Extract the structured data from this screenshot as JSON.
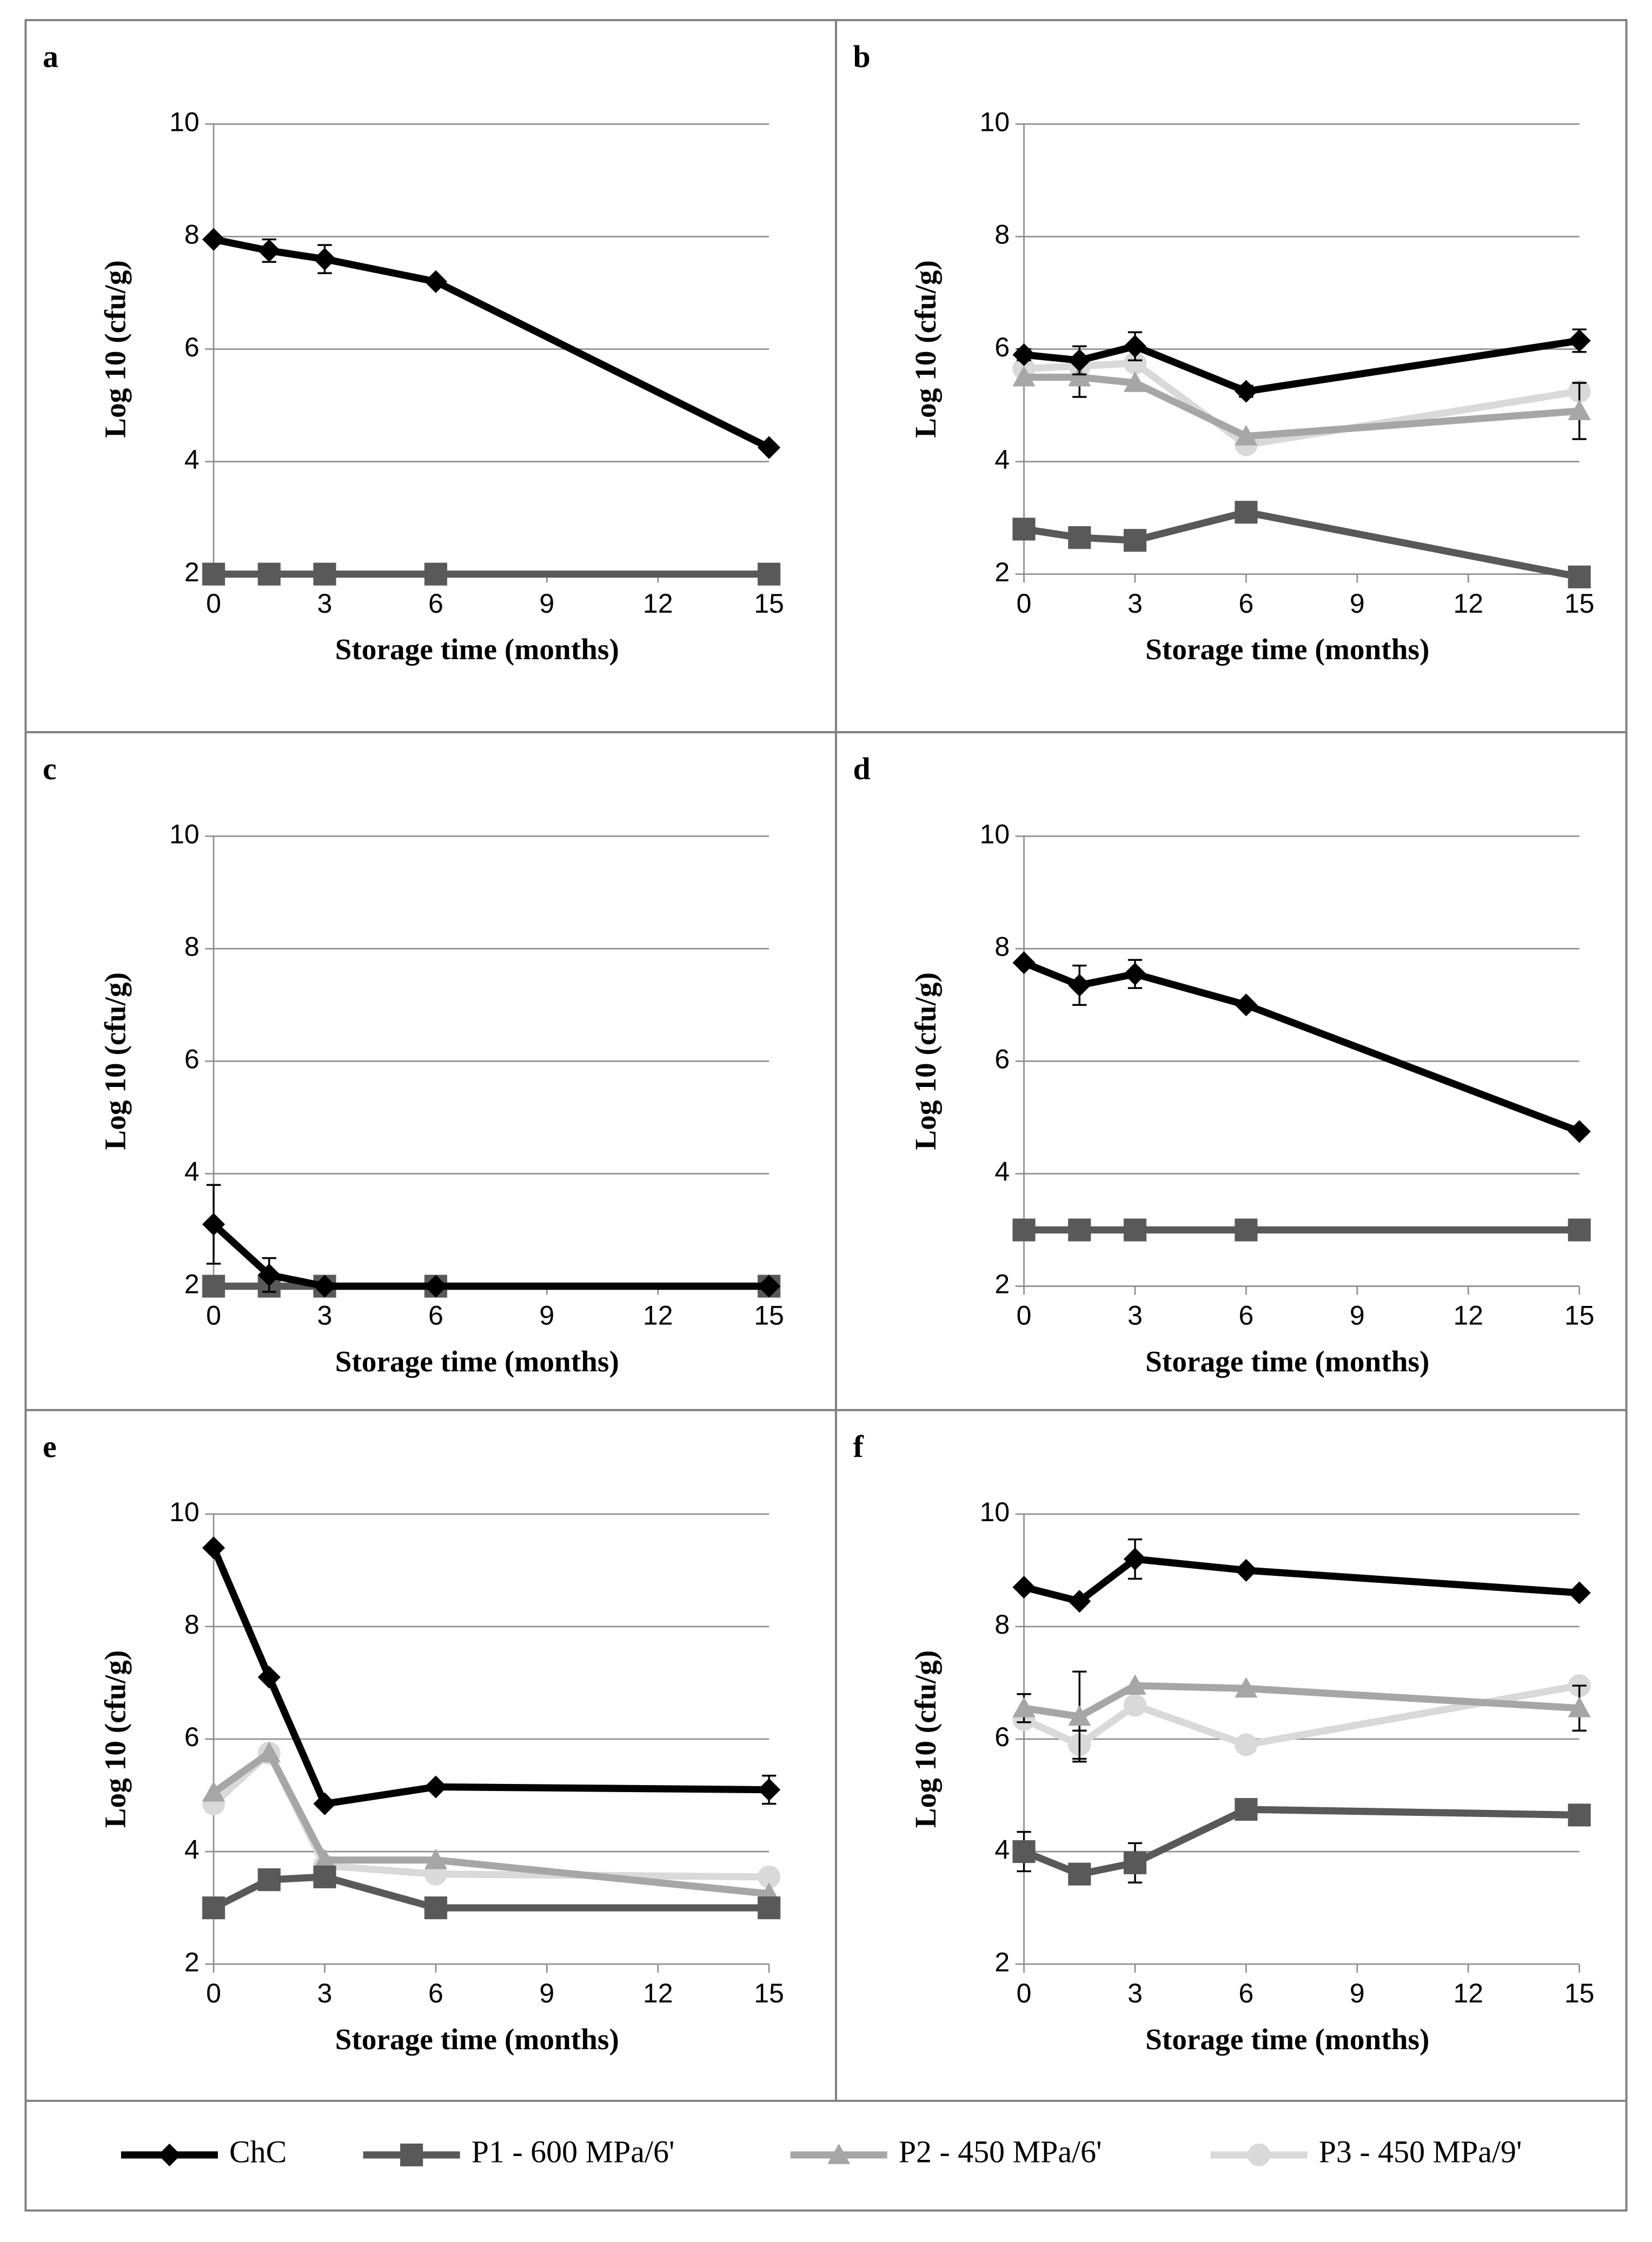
{
  "chart_data": [
    {
      "type": "line",
      "panel": "a",
      "x_label": "Storage time (months)",
      "y_label": "Log 10 (cfu/g)",
      "x": [
        0,
        1.5,
        3,
        6,
        15
      ],
      "xlim": [
        0,
        15
      ],
      "xticks": [
        0,
        3,
        6,
        9,
        12,
        15
      ],
      "ylim": [
        2,
        10
      ],
      "yticks": [
        2,
        4,
        6,
        8,
        10
      ],
      "grid": true,
      "series": [
        {
          "name": "ChC",
          "color": "#000000",
          "values": [
            7.95,
            7.75,
            7.6,
            7.2,
            4.25
          ],
          "errors": [
            0.05,
            0.2,
            0.25,
            0.05,
            0.05
          ]
        },
        {
          "name": "P1 - 600 MPa/6'",
          "color": "#595959",
          "values": [
            2,
            2,
            2,
            2,
            2
          ]
        },
        {
          "name": "P2 - 450 MPa/6'",
          "color": "#a6a6a6",
          "values": [
            2,
            2,
            2,
            2,
            2
          ]
        },
        {
          "name": "P3 - 450 MPa/9'",
          "color": "#d9d9d9",
          "values": [
            2,
            2,
            2,
            2,
            2
          ]
        }
      ]
    },
    {
      "type": "line",
      "panel": "b",
      "x_label": "Storage time (months)",
      "y_label": "Log 10 (cfu/g)",
      "x": [
        0,
        1.5,
        3,
        6,
        15
      ],
      "xlim": [
        0,
        15
      ],
      "xticks": [
        0,
        3,
        6,
        9,
        12,
        15
      ],
      "ylim": [
        2,
        10
      ],
      "yticks": [
        2,
        4,
        6,
        8,
        10
      ],
      "grid": true,
      "series": [
        {
          "name": "ChC",
          "color": "#000000",
          "values": [
            5.9,
            5.8,
            6.05,
            5.25,
            6.15
          ],
          "errors": [
            0.1,
            0.25,
            0.25,
            0.1,
            0.2
          ]
        },
        {
          "name": "P1 - 600 MPa/6'",
          "color": "#595959",
          "values": [
            2.8,
            2.65,
            2.6,
            3.1,
            1.95
          ]
        },
        {
          "name": "P2 - 450 MPa/6'",
          "color": "#a6a6a6",
          "values": [
            5.5,
            5.5,
            5.4,
            4.45,
            4.9
          ],
          "errors": [
            null,
            0.35,
            null,
            null,
            0.5
          ]
        },
        {
          "name": "P3 - 450 MPa/9'",
          "color": "#d9d9d9",
          "values": [
            5.65,
            5.7,
            5.75,
            4.3,
            5.25
          ]
        }
      ]
    },
    {
      "type": "line",
      "panel": "c",
      "x_label": "Storage time (months)",
      "y_label": "Log 10 (cfu/g)",
      "x": [
        0,
        1.5,
        3,
        6,
        15
      ],
      "xlim": [
        0,
        15
      ],
      "xticks": [
        0,
        3,
        6,
        9,
        12,
        15
      ],
      "ylim": [
        2,
        10
      ],
      "yticks": [
        2,
        4,
        6,
        8,
        10
      ],
      "grid": true,
      "series": [
        {
          "name": "ChC",
          "color": "#000000",
          "values": [
            3.1,
            2.2,
            2,
            2,
            2
          ],
          "errors": [
            0.7,
            0.3,
            null,
            null,
            null
          ]
        },
        {
          "name": "P1 - 600 MPa/6'",
          "color": "#595959",
          "values": [
            2,
            2,
            2,
            2,
            2
          ]
        },
        {
          "name": "P2 - 450 MPa/6'",
          "color": "#a6a6a6",
          "values": [
            2,
            2,
            2,
            2,
            2
          ]
        },
        {
          "name": "P3 - 450 MPa/9'",
          "color": "#d9d9d9",
          "values": [
            2,
            2,
            2,
            2,
            2
          ]
        }
      ]
    },
    {
      "type": "line",
      "panel": "d",
      "x_label": "Storage time (months)",
      "y_label": "Log 10 (cfu/g)",
      "x": [
        0,
        1.5,
        3,
        6,
        15
      ],
      "xlim": [
        0,
        15
      ],
      "xticks": [
        0,
        3,
        6,
        9,
        12,
        15
      ],
      "ylim": [
        2,
        10
      ],
      "yticks": [
        2,
        4,
        6,
        8,
        10
      ],
      "grid": true,
      "series": [
        {
          "name": "ChC",
          "color": "#000000",
          "values": [
            7.75,
            7.35,
            7.55,
            7.0,
            4.75
          ],
          "errors": [
            0.05,
            0.35,
            0.25,
            0.05,
            0.05
          ]
        },
        {
          "name": "P1 - 600 MPa/6'",
          "color": "#595959",
          "values": [
            3,
            3,
            3,
            3,
            3
          ]
        },
        {
          "name": "P2 - 450 MPa/6'",
          "color": "#a6a6a6",
          "values": [
            3,
            3,
            3,
            3,
            3
          ]
        },
        {
          "name": "P3 - 450 MPa/9'",
          "color": "#d9d9d9",
          "values": [
            3,
            3,
            3,
            3,
            3
          ]
        }
      ]
    },
    {
      "type": "line",
      "panel": "e",
      "x_label": "Storage time (months)",
      "y_label": "Log 10 (cfu/g)",
      "x": [
        0,
        1.5,
        3,
        6,
        15
      ],
      "xlim": [
        0,
        15
      ],
      "xticks": [
        0,
        3,
        6,
        9,
        12,
        15
      ],
      "ylim": [
        2,
        10
      ],
      "yticks": [
        2,
        4,
        6,
        8,
        10
      ],
      "grid": true,
      "series": [
        {
          "name": "ChC",
          "color": "#000000",
          "values": [
            9.4,
            7.1,
            4.85,
            5.15,
            5.1
          ],
          "errors": [
            null,
            null,
            null,
            null,
            0.25
          ]
        },
        {
          "name": "P1 - 600 MPa/6'",
          "color": "#595959",
          "values": [
            3,
            3.5,
            3.55,
            3,
            3
          ]
        },
        {
          "name": "P2 - 450 MPa/6'",
          "color": "#a6a6a6",
          "values": [
            5.05,
            5.75,
            3.85,
            3.85,
            3.25
          ]
        },
        {
          "name": "P3 - 450 MPa/9'",
          "color": "#d9d9d9",
          "values": [
            4.85,
            5.75,
            3.75,
            3.6,
            3.55
          ]
        }
      ]
    },
    {
      "type": "line",
      "panel": "f",
      "x_label": "Storage time (months)",
      "y_label": "Log 10 (cfu/g)",
      "x": [
        0,
        1.5,
        3,
        6,
        15
      ],
      "xlim": [
        0,
        15
      ],
      "xticks": [
        0,
        3,
        6,
        9,
        12,
        15
      ],
      "ylim": [
        2,
        10
      ],
      "yticks": [
        2,
        4,
        6,
        8,
        10
      ],
      "grid": true,
      "series": [
        {
          "name": "ChC",
          "color": "#000000",
          "values": [
            8.7,
            8.45,
            9.2,
            9.0,
            8.6
          ],
          "errors": [
            null,
            null,
            0.35,
            null,
            null
          ]
        },
        {
          "name": "P1 - 600 MPa/6'",
          "color": "#595959",
          "values": [
            4.0,
            3.6,
            3.8,
            4.75,
            4.65
          ],
          "errors": [
            0.35,
            null,
            0.35,
            null,
            0.15
          ]
        },
        {
          "name": "P2 - 450 MPa/6'",
          "color": "#a6a6a6",
          "values": [
            6.55,
            6.4,
            6.95,
            6.9,
            6.55
          ],
          "errors": [
            0.25,
            0.8,
            null,
            null,
            0.4
          ]
        },
        {
          "name": "P3 - 450 MPa/9'",
          "color": "#d9d9d9",
          "values": [
            6.35,
            5.9,
            6.6,
            5.9,
            6.95
          ],
          "errors": [
            null,
            0.25,
            null,
            null,
            null
          ]
        }
      ]
    }
  ]
}
